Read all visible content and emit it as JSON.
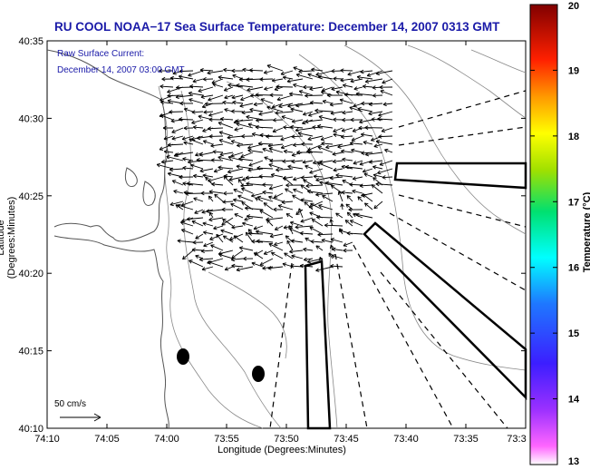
{
  "title": "RU COOL  NOAA−17  Sea Surface Temperature:  December 14, 2007 0313 GMT",
  "annotation": {
    "line1": "Raw Surface Current:",
    "line2": "December 14, 2007 03:00 GMT"
  },
  "scale_label": "50 cm/s",
  "axes": {
    "xlabel": "Longitude (Degrees:Minutes)",
    "ylabel": "Latitude (Degrees:Minutes)",
    "x_ticks": [
      "74:10",
      "74:05",
      "74:00",
      "73:55",
      "73:50",
      "73:45",
      "73:40",
      "73:35",
      "73:3"
    ],
    "y_ticks": [
      "40:35",
      "40:30",
      "40:25",
      "40:20",
      "40:15",
      "40:10"
    ]
  },
  "colorbar": {
    "label": "Temperature (°C)",
    "ticks": [
      "20",
      "19",
      "18",
      "17",
      "16",
      "15",
      "14",
      "13"
    ],
    "min": 13,
    "max": 20
  }
}
